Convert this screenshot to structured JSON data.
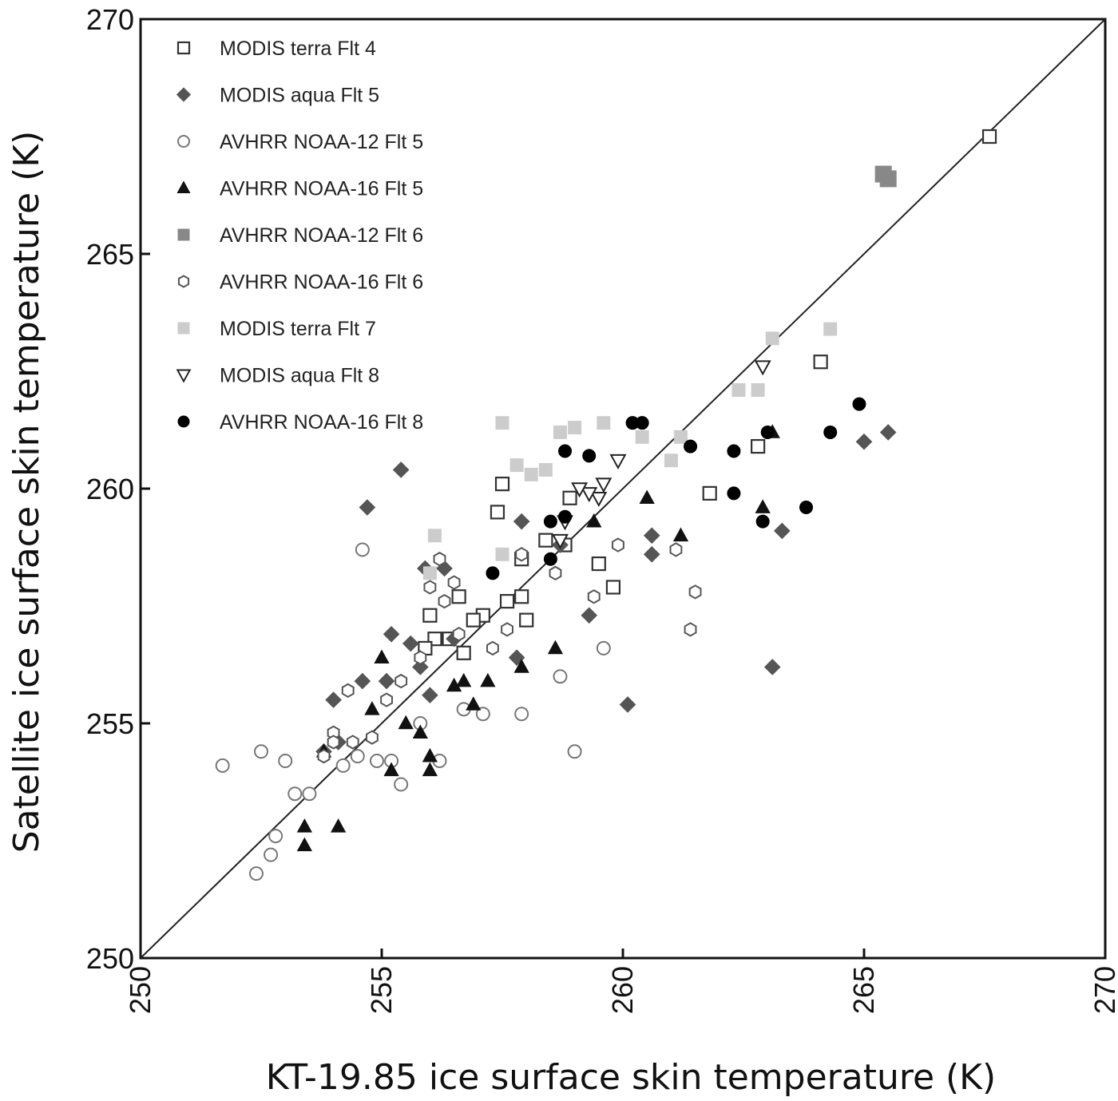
{
  "chart_data": {
    "type": "scatter",
    "xlabel": "KT-19.85 ice surface skin temperature (K)",
    "ylabel": "Satellite ice surface skin temperature (K)",
    "xlim": [
      250,
      270
    ],
    "ylim": [
      250,
      270
    ],
    "xticks": [
      "250",
      "255",
      "260",
      "265",
      "270"
    ],
    "yticks": [
      "250",
      "255",
      "260",
      "265",
      "270"
    ],
    "grid": false,
    "legend_position": "top-left",
    "reference_line": "1:1",
    "series": [
      {
        "name": "MODIS  terra Flt 4",
        "marker": "square-open",
        "color": "#333333",
        "points": [
          [
            267.6,
            267.5
          ],
          [
            264.1,
            262.7
          ],
          [
            262.8,
            260.9
          ],
          [
            261.8,
            259.9
          ],
          [
            259.8,
            257.9
          ],
          [
            259.5,
            258.4
          ],
          [
            258.9,
            259.8
          ],
          [
            258.8,
            258.8
          ],
          [
            258.4,
            258.9
          ],
          [
            258.0,
            257.2
          ],
          [
            257.9,
            258.5
          ],
          [
            257.9,
            257.7
          ],
          [
            257.6,
            257.6
          ],
          [
            257.5,
            260.1
          ],
          [
            257.4,
            259.5
          ],
          [
            257.1,
            257.3
          ],
          [
            256.9,
            257.2
          ],
          [
            256.6,
            257.7
          ],
          [
            256.7,
            256.5
          ],
          [
            256.4,
            256.8
          ],
          [
            256.1,
            256.8
          ],
          [
            256.0,
            257.3
          ],
          [
            255.9,
            256.6
          ]
        ]
      },
      {
        "name": "MODIS  aqua Flt 5",
        "marker": "diamond-filled",
        "color": "#555555",
        "points": [
          [
            265.5,
            261.2
          ],
          [
            265.0,
            261.0
          ],
          [
            263.3,
            259.1
          ],
          [
            263.1,
            256.2
          ],
          [
            260.6,
            259.0
          ],
          [
            260.6,
            258.6
          ],
          [
            260.1,
            255.4
          ],
          [
            259.3,
            257.3
          ],
          [
            258.7,
            258.8
          ],
          [
            257.9,
            259.3
          ],
          [
            257.8,
            256.4
          ],
          [
            256.5,
            256.8
          ],
          [
            256.3,
            258.3
          ],
          [
            256.0,
            255.6
          ],
          [
            255.9,
            258.3
          ],
          [
            255.8,
            256.2
          ],
          [
            255.6,
            256.7
          ],
          [
            255.4,
            260.4
          ],
          [
            255.2,
            256.9
          ],
          [
            255.1,
            255.9
          ],
          [
            254.7,
            259.6
          ],
          [
            254.6,
            255.9
          ],
          [
            254.1,
            254.6
          ],
          [
            254.0,
            255.5
          ],
          [
            253.8,
            254.4
          ]
        ]
      },
      {
        "name": "AVHRR NOAA-12 Flt 5",
        "marker": "circle-open",
        "color": "#777777",
        "points": [
          [
            259.6,
            256.6
          ],
          [
            259.0,
            254.4
          ],
          [
            258.7,
            256.0
          ],
          [
            257.9,
            255.2
          ],
          [
            257.1,
            255.2
          ],
          [
            256.7,
            255.3
          ],
          [
            256.2,
            254.2
          ],
          [
            255.8,
            255.0
          ],
          [
            255.4,
            253.7
          ],
          [
            255.2,
            254.2
          ],
          [
            254.9,
            254.2
          ],
          [
            254.6,
            258.7
          ],
          [
            254.5,
            254.3
          ],
          [
            254.2,
            254.1
          ],
          [
            253.5,
            253.5
          ],
          [
            253.2,
            253.5
          ],
          [
            253.0,
            254.2
          ],
          [
            252.8,
            252.6
          ],
          [
            252.7,
            252.2
          ],
          [
            252.4,
            251.8
          ],
          [
            252.5,
            254.4
          ],
          [
            251.7,
            254.1
          ]
        ]
      },
      {
        "name": "AVHRR NOAA-16 Flt 5",
        "marker": "triangle-filled",
        "color": "#111111",
        "points": [
          [
            263.1,
            261.2
          ],
          [
            262.9,
            259.6
          ],
          [
            261.2,
            259.0
          ],
          [
            260.5,
            259.8
          ],
          [
            259.4,
            259.3
          ],
          [
            258.6,
            256.6
          ],
          [
            257.9,
            256.2
          ],
          [
            257.2,
            255.9
          ],
          [
            256.9,
            255.4
          ],
          [
            256.7,
            255.9
          ],
          [
            256.5,
            255.8
          ],
          [
            256.0,
            254.0
          ],
          [
            256.0,
            254.3
          ],
          [
            255.8,
            254.8
          ],
          [
            255.5,
            255.0
          ],
          [
            255.2,
            254.0
          ],
          [
            255.0,
            256.4
          ],
          [
            254.8,
            255.3
          ],
          [
            253.8,
            254.4
          ],
          [
            254.1,
            252.8
          ],
          [
            253.4,
            252.8
          ],
          [
            253.4,
            252.4
          ]
        ]
      },
      {
        "name": "AVHRR NOAA-12 Flt 6",
        "marker": "square-filled",
        "color": "#888888",
        "points": [
          [
            265.5,
            266.6
          ],
          [
            265.4,
            266.7
          ]
        ]
      },
      {
        "name": "AVHRR NOAA-16 Flt 6",
        "marker": "hexagon-open",
        "color": "#555555",
        "points": [
          [
            261.5,
            257.8
          ],
          [
            261.4,
            257.0
          ],
          [
            261.1,
            258.7
          ],
          [
            259.9,
            258.8
          ],
          [
            259.4,
            257.7
          ],
          [
            258.6,
            258.2
          ],
          [
            257.9,
            258.6
          ],
          [
            257.6,
            257.0
          ],
          [
            257.3,
            256.6
          ],
          [
            256.6,
            256.9
          ],
          [
            256.5,
            258.0
          ],
          [
            256.3,
            257.6
          ],
          [
            256.2,
            258.5
          ],
          [
            256.0,
            257.9
          ],
          [
            255.8,
            256.4
          ],
          [
            255.4,
            255.9
          ],
          [
            255.1,
            255.5
          ],
          [
            254.8,
            254.7
          ],
          [
            254.4,
            254.6
          ],
          [
            254.3,
            255.7
          ],
          [
            254.0,
            254.8
          ],
          [
            254.0,
            254.6
          ],
          [
            253.8,
            254.3
          ]
        ]
      },
      {
        "name": "MODIS  terra Flt 7",
        "marker": "square-filled",
        "color": "#cccccc",
        "points": [
          [
            264.3,
            263.4
          ],
          [
            263.1,
            263.2
          ],
          [
            262.8,
            262.1
          ],
          [
            262.4,
            262.1
          ],
          [
            261.2,
            261.1
          ],
          [
            261.0,
            260.6
          ],
          [
            260.4,
            261.1
          ],
          [
            259.6,
            261.4
          ],
          [
            259.0,
            261.3
          ],
          [
            258.7,
            261.2
          ],
          [
            258.4,
            260.4
          ],
          [
            258.1,
            260.3
          ],
          [
            257.8,
            260.5
          ],
          [
            257.5,
            261.4
          ],
          [
            257.5,
            258.6
          ],
          [
            256.1,
            259.0
          ],
          [
            256.0,
            258.2
          ]
        ]
      },
      {
        "name": "MODIS  aqua Flt 8",
        "marker": "triangle-down-open",
        "color": "#222222",
        "points": [
          [
            262.9,
            262.6
          ],
          [
            259.9,
            260.6
          ],
          [
            259.6,
            260.1
          ],
          [
            259.5,
            259.8
          ],
          [
            259.3,
            259.9
          ],
          [
            259.1,
            260.0
          ],
          [
            258.8,
            259.3
          ],
          [
            258.7,
            258.9
          ]
        ]
      },
      {
        "name": "AVHRR NOAA-16 Flt 8",
        "marker": "circle-filled",
        "color": "#000000",
        "points": [
          [
            264.9,
            261.8
          ],
          [
            264.3,
            261.2
          ],
          [
            263.8,
            259.6
          ],
          [
            263.0,
            261.2
          ],
          [
            262.9,
            259.3
          ],
          [
            262.3,
            260.8
          ],
          [
            262.3,
            259.9
          ],
          [
            261.4,
            260.9
          ],
          [
            260.4,
            261.4
          ],
          [
            260.2,
            261.4
          ],
          [
            259.3,
            260.7
          ],
          [
            258.8,
            260.8
          ],
          [
            258.8,
            259.4
          ],
          [
            258.5,
            259.3
          ],
          [
            258.5,
            258.5
          ],
          [
            257.3,
            258.2
          ]
        ]
      }
    ]
  }
}
